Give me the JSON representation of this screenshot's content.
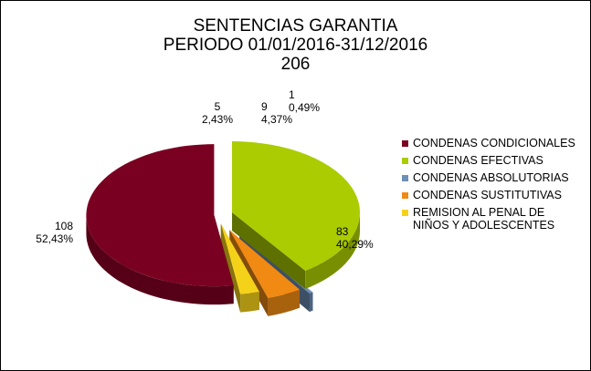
{
  "chart_data": {
    "type": "pie",
    "title": [
      "SENTENCIAS GARANTIA",
      "PERIODO 01/01/2016-31/12/2016",
      "206"
    ],
    "slices": [
      {
        "name": "CONDENAS CONDICIONALES",
        "value": 108,
        "percent": "52,43%",
        "color": "#7a0021"
      },
      {
        "name": "CONDENAS EFECTIVAS",
        "value": 83,
        "percent": "40,29%",
        "color": "#aacc00"
      },
      {
        "name": "CONDENAS ABSOLUTORIAS",
        "value": 1,
        "percent": "0,49%",
        "color": "#6e8fb5"
      },
      {
        "name": "CONDENAS SUSTITUTIVAS",
        "value": 9,
        "percent": "4,37%",
        "color": "#f08a13"
      },
      {
        "name": "REMISION AL PENAL DE\nNIÑOS Y ADOLESCENTES",
        "value": 5,
        "percent": "2,43%",
        "color": "#f5d21a"
      }
    ],
    "legend_position": "right"
  }
}
